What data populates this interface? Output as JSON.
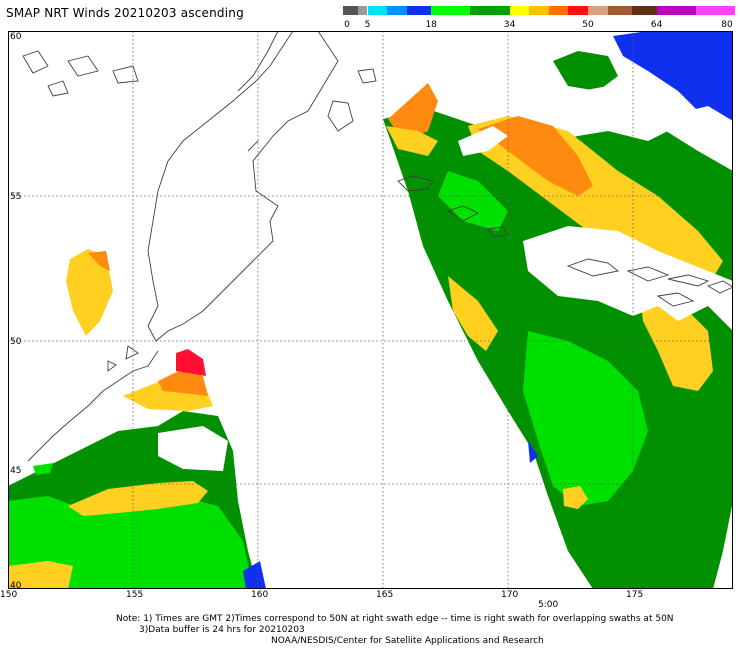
{
  "title": "SMAP NRT Winds 20210203 ascending",
  "colorbar": {
    "ticks": [
      "0",
      "5",
      "18",
      "34",
      "50",
      "64",
      "80"
    ],
    "stops": [
      {
        "from": 0,
        "to": 3,
        "color": "#555555"
      },
      {
        "from": 3,
        "to": 5,
        "color": "#9a9a9a"
      },
      {
        "from": 5,
        "to": 9,
        "color": "#00e0ff"
      },
      {
        "from": 9,
        "to": 13,
        "color": "#0090ff"
      },
      {
        "from": 13,
        "to": 18,
        "color": "#1030f0"
      },
      {
        "from": 18,
        "to": 26,
        "color": "#00ff00"
      },
      {
        "from": 26,
        "to": 34,
        "color": "#00a000"
      },
      {
        "from": 34,
        "to": 38,
        "color": "#ffff00"
      },
      {
        "from": 38,
        "to": 42,
        "color": "#ffc000"
      },
      {
        "from": 42,
        "to": 46,
        "color": "#ff7000"
      },
      {
        "from": 46,
        "to": 50,
        "color": "#ff1010"
      },
      {
        "from": 50,
        "to": 54,
        "color": "#d8a080"
      },
      {
        "from": 54,
        "to": 59,
        "color": "#a05a30"
      },
      {
        "from": 59,
        "to": 64,
        "color": "#603010"
      },
      {
        "from": 64,
        "to": 72,
        "color": "#c000c0"
      },
      {
        "from": 72,
        "to": 80,
        "color": "#ff40ff"
      }
    ]
  },
  "map": {
    "lat_labels": [
      "60",
      "55",
      "50",
      "45",
      "40"
    ],
    "lon_labels": [
      "150",
      "155",
      "160",
      "165",
      "170",
      "175"
    ],
    "time_label": "5:00",
    "colors": {
      "dark_green": "#009000",
      "light_green": "#00e000",
      "yellow": "#ffd020",
      "orange": "#ff8a10",
      "red": "#ff1030",
      "blue": "#1030f0",
      "coast": "#404040"
    }
  },
  "footer": {
    "line1": "Note: 1) Times are GMT 2)Times correspond to 50N at right swath edge -- time is right swath for overlapping swaths at 50N",
    "line2": "3)Data buffer is 24 hrs for 20210203",
    "line3": "NOAA/NESDIS/Center for Satellite Applications and Research"
  }
}
